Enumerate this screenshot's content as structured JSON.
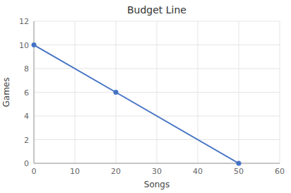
{
  "chart_data": {
    "type": "line",
    "title": "Budget Line",
    "xlabel": "Songs",
    "ylabel": "Games",
    "x": [
      0,
      20,
      50
    ],
    "values": [
      10,
      6,
      0
    ],
    "color": "#4472C4",
    "marker": "circle",
    "xlim": [
      0,
      60
    ],
    "ylim": [
      0,
      12
    ],
    "xticks": [
      0,
      10,
      20,
      30,
      40,
      50,
      60
    ],
    "yticks": [
      0,
      2,
      4,
      6,
      8,
      10,
      12
    ],
    "grid": true
  }
}
